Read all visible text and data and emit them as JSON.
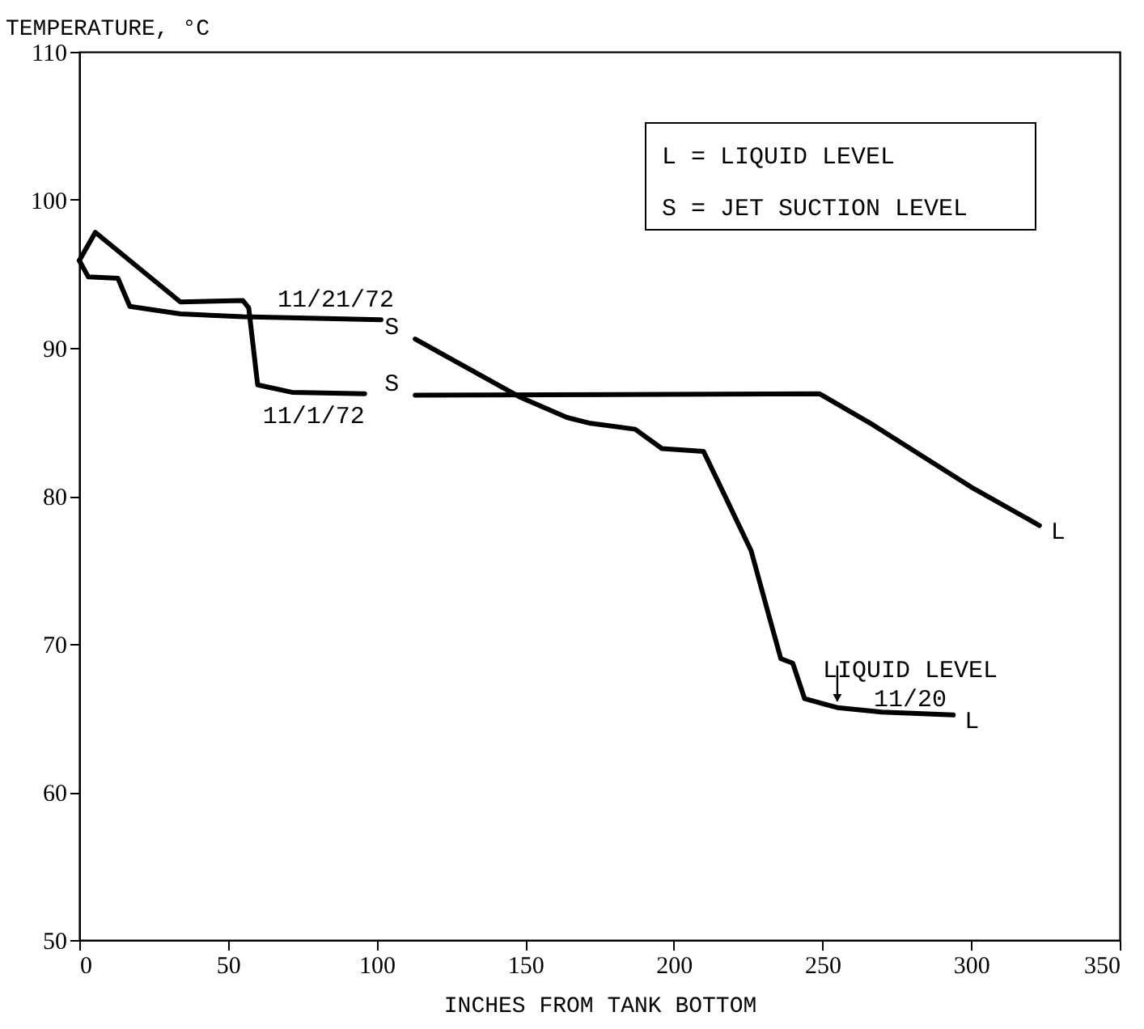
{
  "chart_data": {
    "type": "line",
    "xlabel": "INCHES FROM TANK BOTTOM",
    "ylabel": "TEMPERATURE, °C",
    "xlim": [
      0,
      350
    ],
    "xticks": [
      0,
      50,
      100,
      150,
      200,
      250,
      300,
      350
    ],
    "ylim": [
      50,
      110
    ],
    "yticks": [
      50,
      60,
      70,
      80,
      90,
      100,
      110
    ],
    "grid": false,
    "legend": false,
    "marker": "none",
    "line_style": "solid",
    "series": [
      {
        "name": "11/21/72",
        "color": "#000000",
        "x": [
          0,
          3,
          13,
          17,
          34,
          55,
          101.5,
          105,
          113,
          148,
          164,
          172,
          187,
          196,
          210,
          216,
          226,
          232,
          236,
          240,
          244,
          255,
          270,
          294
        ],
        "values": [
          95.9,
          94.8,
          94.7,
          92.8,
          92.3,
          92.1,
          91.9,
          null,
          90.6,
          86.7,
          85.3,
          84.9,
          84.5,
          83.2,
          83.0,
          80.5,
          76.3,
          71.9,
          69.0,
          68.7,
          66.3,
          65.7,
          65.4,
          65.2
        ]
      },
      {
        "name": "11/1/72",
        "color": "#000000",
        "x": [
          0,
          5.4,
          34,
          55,
          57,
          60,
          71.5,
          96,
          105,
          113,
          249,
          267,
          300,
          323
        ],
        "values": [
          95.9,
          97.8,
          93.1,
          93.2,
          92.7,
          87.5,
          87.0,
          86.9,
          null,
          86.8,
          86.9,
          84.8,
          80.6,
          78.0
        ]
      }
    ],
    "annotations": [
      "L = LIQUID LEVEL",
      "S = JET SUCTION LEVEL",
      {
        "text": "S",
        "x": 113,
        "y": 90.6
      },
      {
        "text": "S",
        "x": 113,
        "y": 86.8
      },
      {
        "text": "L",
        "x": 323,
        "y": 78.0
      },
      {
        "text": "L",
        "x": 294,
        "y": 65.2
      },
      {
        "text": "LIQUID LEVEL\n11/20",
        "x": 255,
        "y": 65.7
      }
    ]
  }
}
